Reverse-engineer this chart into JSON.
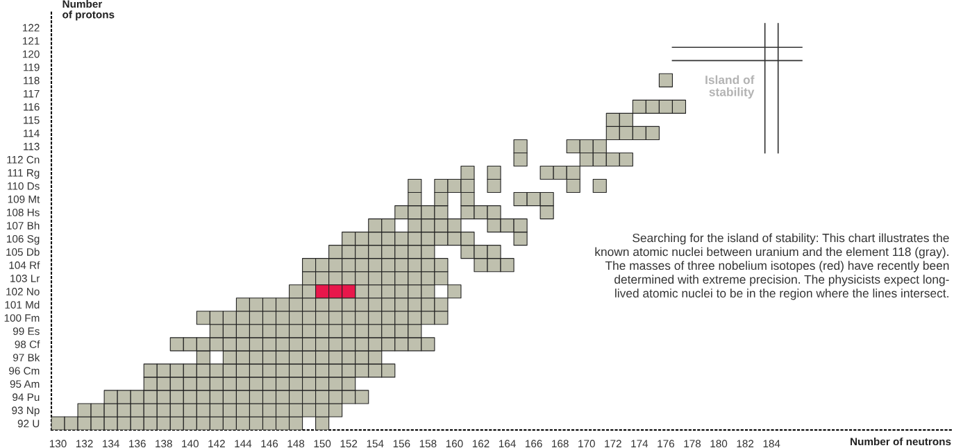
{
  "chart_data": {
    "type": "scatter",
    "xlabel": "Number of neutrons",
    "ylabel": "Number of protons",
    "xlim": [
      129.5,
      197.6
    ],
    "ylim": [
      91.5,
      123.3
    ],
    "xticks": [
      130,
      132,
      134,
      136,
      138,
      140,
      142,
      144,
      146,
      148,
      150,
      152,
      154,
      156,
      158,
      160,
      162,
      164,
      166,
      168,
      170,
      172,
      174,
      176,
      178,
      180,
      182,
      184
    ],
    "yticks": [
      {
        "value": 92,
        "label": "92 U"
      },
      {
        "value": 93,
        "label": "93 Np"
      },
      {
        "value": 94,
        "label": "94 Pu"
      },
      {
        "value": 95,
        "label": "95 Am"
      },
      {
        "value": 96,
        "label": "96 Cm"
      },
      {
        "value": 97,
        "label": "97 Bk"
      },
      {
        "value": 98,
        "label": "98 Cf"
      },
      {
        "value": 99,
        "label": "99 Es"
      },
      {
        "value": 100,
        "label": "100 Fm"
      },
      {
        "value": 101,
        "label": "101 Md"
      },
      {
        "value": 102,
        "label": "102 No"
      },
      {
        "value": 103,
        "label": "103 Lr"
      },
      {
        "value": 104,
        "label": "104 Rf"
      },
      {
        "value": 105,
        "label": "105 Db"
      },
      {
        "value": 106,
        "label": "106 Sg"
      },
      {
        "value": 107,
        "label": "107 Bh"
      },
      {
        "value": 108,
        "label": "108 Hs"
      },
      {
        "value": 109,
        "label": "109 Mt"
      },
      {
        "value": 110,
        "label": "110 Ds"
      },
      {
        "value": 111,
        "label": "111 Rg"
      },
      {
        "value": 112,
        "label": "112 Cn"
      },
      113,
      114,
      115,
      116,
      117,
      118,
      119,
      120,
      121,
      122
    ],
    "marker": "square",
    "grid": false,
    "ref_lines": [
      {
        "axis": "x",
        "value": 183.5,
        "color": "#333333"
      },
      {
        "axis": "x",
        "value": 184.5,
        "color": "#333333"
      },
      {
        "axis": "y",
        "value": 119.5,
        "color": "#333333"
      },
      {
        "axis": "y",
        "value": 120.5,
        "color": "#333333"
      }
    ],
    "annotations": [
      "Island of stability",
      "Searching for the island of stability: This chart illustrates the known atomic nuclei between uranium and the element 118 (gray). The masses of three nobelium isotopes (red) have recently been determined with extreme precision. The physicists expect long-lived atomic nuclei to be in the region where the lines intersect."
    ],
    "series": [
      {
        "color": "#bfc0ae",
        "x": [
          130,
          131,
          132,
          133,
          134,
          135,
          136,
          137,
          138,
          139,
          140,
          141,
          142,
          143,
          144,
          145,
          146,
          147,
          148,
          150,
          132,
          133,
          134,
          135,
          136,
          137,
          138,
          139,
          140,
          141,
          142,
          143,
          144,
          145,
          146,
          147,
          148,
          149,
          150,
          151,
          134,
          135,
          136,
          137,
          138,
          139,
          140,
          141,
          142,
          143,
          144,
          145,
          146,
          147,
          148,
          149,
          150,
          151,
          152,
          153,
          137,
          138,
          139,
          140,
          141,
          142,
          143,
          144,
          145,
          146,
          147,
          148,
          149,
          150,
          151,
          152,
          137,
          138,
          139,
          140,
          141,
          142,
          143,
          144,
          145,
          146,
          147,
          148,
          149,
          150,
          151,
          152,
          153,
          154,
          155,
          141,
          143,
          144,
          145,
          146,
          147,
          148,
          149,
          150,
          151,
          152,
          153,
          154,
          139,
          140,
          141,
          142,
          143,
          144,
          145,
          146,
          147,
          148,
          149,
          150,
          151,
          152,
          153,
          154,
          155,
          156,
          157,
          158,
          142,
          143,
          144,
          145,
          146,
          147,
          148,
          149,
          150,
          151,
          152,
          153,
          154,
          155,
          156,
          157,
          141,
          142,
          143,
          144,
          145,
          146,
          147,
          148,
          149,
          150,
          151,
          152,
          153,
          154,
          155,
          156,
          157,
          158,
          159,
          144,
          145,
          146,
          147,
          148,
          149,
          150,
          151,
          152,
          153,
          154,
          155,
          156,
          157,
          158,
          159,
          148,
          149,
          153,
          154,
          155,
          156,
          157,
          158,
          160,
          149,
          150,
          151,
          152,
          153,
          154,
          155,
          156,
          157,
          158,
          159,
          149,
          150,
          151,
          152,
          153,
          154,
          155,
          156,
          157,
          158,
          159,
          162,
          163,
          164,
          151,
          152,
          153,
          154,
          155,
          156,
          157,
          158,
          161,
          162,
          163,
          152,
          153,
          154,
          155,
          156,
          157,
          158,
          159,
          160,
          161,
          165,
          154,
          155,
          157,
          158,
          159,
          160,
          163,
          164,
          165,
          156,
          157,
          158,
          159,
          161,
          162,
          163,
          167,
          157,
          159,
          161,
          165,
          166,
          167,
          157,
          159,
          160,
          161,
          163,
          169,
          171,
          161,
          163,
          167,
          168,
          169,
          165,
          170,
          171,
          172,
          173,
          165,
          169,
          170,
          171,
          172,
          173,
          174,
          175,
          172,
          173,
          174,
          175,
          176,
          177,
          176
        ],
        "values": [
          92,
          92,
          92,
          92,
          92,
          92,
          92,
          92,
          92,
          92,
          92,
          92,
          92,
          92,
          92,
          92,
          92,
          92,
          92,
          92,
          93,
          93,
          93,
          93,
          93,
          93,
          93,
          93,
          93,
          93,
          93,
          93,
          93,
          93,
          93,
          93,
          93,
          93,
          93,
          93,
          94,
          94,
          94,
          94,
          94,
          94,
          94,
          94,
          94,
          94,
          94,
          94,
          94,
          94,
          94,
          94,
          94,
          94,
          94,
          94,
          95,
          95,
          95,
          95,
          95,
          95,
          95,
          95,
          95,
          95,
          95,
          95,
          95,
          95,
          95,
          95,
          96,
          96,
          96,
          96,
          96,
          96,
          96,
          96,
          96,
          96,
          96,
          96,
          96,
          96,
          96,
          96,
          96,
          96,
          96,
          97,
          97,
          97,
          97,
          97,
          97,
          97,
          97,
          97,
          97,
          97,
          97,
          97,
          98,
          98,
          98,
          98,
          98,
          98,
          98,
          98,
          98,
          98,
          98,
          98,
          98,
          98,
          98,
          98,
          98,
          98,
          98,
          98,
          99,
          99,
          99,
          99,
          99,
          99,
          99,
          99,
          99,
          99,
          99,
          99,
          99,
          99,
          99,
          99,
          100,
          100,
          100,
          100,
          100,
          100,
          100,
          100,
          100,
          100,
          100,
          100,
          100,
          100,
          100,
          100,
          100,
          100,
          100,
          101,
          101,
          101,
          101,
          101,
          101,
          101,
          101,
          101,
          101,
          101,
          101,
          101,
          101,
          101,
          101,
          102,
          102,
          102,
          102,
          102,
          102,
          102,
          102,
          102,
          103,
          103,
          103,
          103,
          103,
          103,
          103,
          103,
          103,
          103,
          103,
          104,
          104,
          104,
          104,
          104,
          104,
          104,
          104,
          104,
          104,
          104,
          104,
          104,
          104,
          105,
          105,
          105,
          105,
          105,
          105,
          105,
          105,
          105,
          105,
          105,
          106,
          106,
          106,
          106,
          106,
          106,
          106,
          106,
          106,
          106,
          106,
          107,
          107,
          107,
          107,
          107,
          107,
          107,
          107,
          107,
          108,
          108,
          108,
          108,
          108,
          108,
          108,
          108,
          109,
          109,
          109,
          109,
          109,
          109,
          110,
          110,
          110,
          110,
          110,
          110,
          110,
          111,
          111,
          111,
          111,
          111,
          112,
          112,
          112,
          112,
          112,
          113,
          113,
          113,
          113,
          114,
          114,
          114,
          114,
          115,
          115,
          116,
          116,
          116,
          116,
          118
        ]
      },
      {
        "color": "#e8174b",
        "x": [
          150,
          151,
          152
        ],
        "values": [
          102,
          102,
          102
        ]
      }
    ]
  }
}
